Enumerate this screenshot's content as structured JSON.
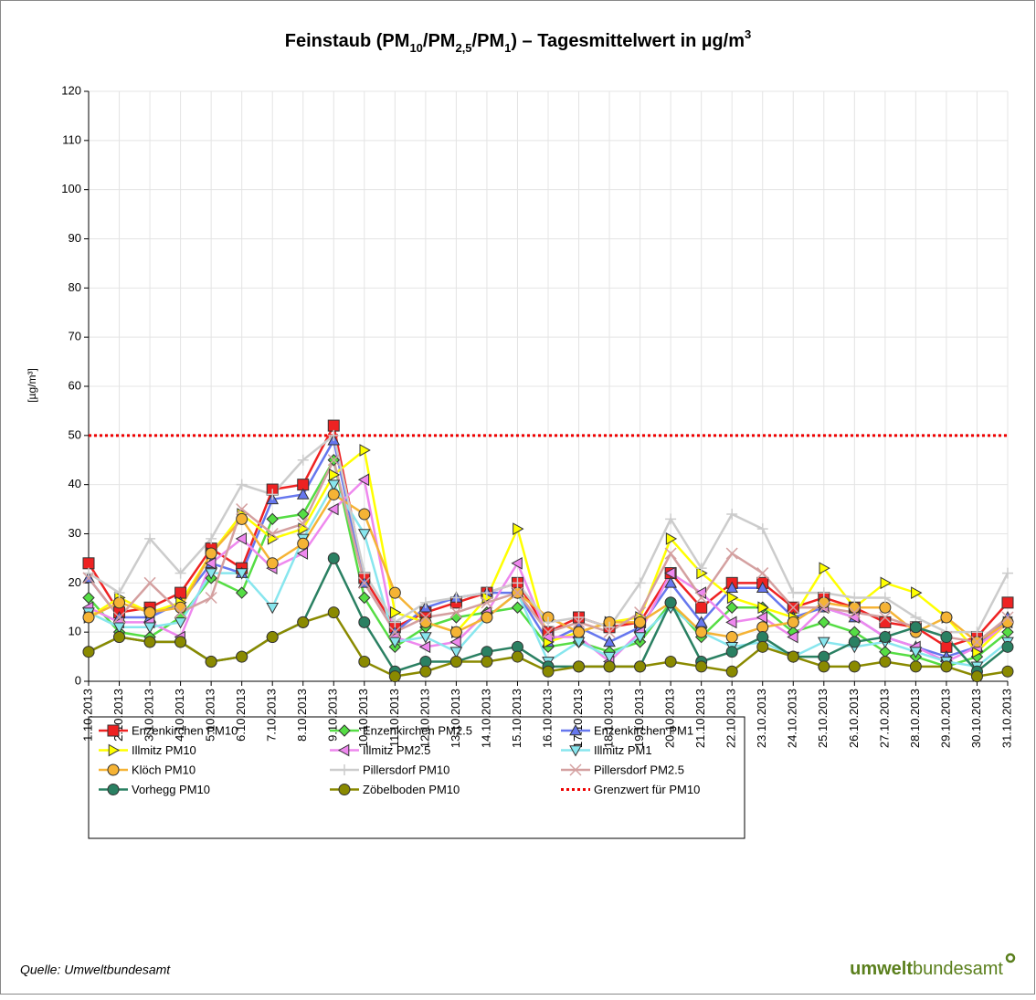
{
  "chart_data": {
    "type": "line",
    "title": [
      "Feinstaub (PM",
      "10",
      "/PM",
      "2,5",
      "/PM",
      "1",
      ") – Tagesmittelwert in µg/m",
      "3"
    ],
    "y_label": "[µg/m³]",
    "categories": [
      "1.10.2013",
      "2.10.2013",
      "3.10.2013",
      "4.10.2013",
      "5.10.2013",
      "6.10.2013",
      "7.10.2013",
      "8.10.2013",
      "9.10.2013",
      "10.10.2013",
      "11.10.2013",
      "12.10.2013",
      "13.10.2013",
      "14.10.2013",
      "15.10.2013",
      "16.10.2013",
      "17.10.2013",
      "18.10.2013",
      "19.10.2013",
      "20.10.2013",
      "21.10.2013",
      "22.10.2013",
      "23.10.2013",
      "24.10.2013",
      "25.10.2013",
      "26.10.2013",
      "27.10.2013",
      "28.10.2013",
      "29.10.2013",
      "30.10.2013",
      "31.10.2013"
    ],
    "ylim": [
      0,
      120
    ],
    "yticks": [
      0,
      10,
      20,
      30,
      40,
      50,
      60,
      70,
      80,
      90,
      100,
      110,
      120
    ],
    "grid": true,
    "series": [
      {
        "name": "Enzenkirchen PM10",
        "color": "#ee2222",
        "marker": "square",
        "values": [
          24,
          14,
          15,
          18,
          27,
          23,
          39,
          40,
          52,
          21,
          11,
          14,
          16,
          18,
          20,
          10,
          13,
          11,
          12,
          22,
          15,
          20,
          20,
          15,
          17,
          15,
          12,
          11,
          7,
          9,
          16
        ]
      },
      {
        "name": "Enzenkirchen PM2.5",
        "color": "#55dd44",
        "marker": "diamond",
        "values": [
          17,
          10,
          9,
          13,
          21,
          18,
          33,
          34,
          45,
          17,
          7,
          11,
          13,
          14,
          15,
          7,
          8,
          6,
          8,
          16,
          9,
          15,
          15,
          10,
          12,
          10,
          6,
          5,
          3,
          5,
          10
        ]
      },
      {
        "name": "Enzenkirchen PM1",
        "color": "#6677ee",
        "marker": "triangle-up",
        "values": [
          21,
          13,
          13,
          16,
          24,
          22,
          37,
          38,
          49,
          20,
          10,
          15,
          17,
          18,
          18,
          8,
          11,
          8,
          11,
          20,
          12,
          19,
          19,
          13,
          15,
          13,
          9,
          7,
          5,
          7,
          13
        ]
      },
      {
        "name": "Illmitz PM10",
        "color": "#ffff00",
        "marker": "triangle-right",
        "values": [
          13,
          17,
          14,
          16,
          26,
          34,
          29,
          31,
          42,
          47,
          14,
          12,
          10,
          17,
          31,
          8,
          10,
          12,
          13,
          29,
          22,
          17,
          15,
          13,
          23,
          15,
          20,
          18,
          13,
          6,
          12
        ]
      },
      {
        "name": "Illmitz PM2.5",
        "color": "#ee88ee",
        "marker": "triangle-left",
        "values": [
          15,
          12,
          12,
          9,
          24,
          29,
          23,
          26,
          35,
          41,
          9,
          7,
          8,
          14,
          24,
          9,
          9,
          4,
          10,
          22,
          18,
          12,
          13,
          9,
          15,
          13,
          9,
          7,
          4,
          7,
          12
        ]
      },
      {
        "name": "Illmitz PM1",
        "color": "#88e6ee",
        "marker": "triangle-down",
        "values": [
          14,
          11,
          11,
          12,
          22,
          22,
          15,
          29,
          40,
          30,
          8,
          9,
          6,
          13,
          18,
          4,
          8,
          5,
          9,
          15,
          10,
          7,
          8,
          5,
          8,
          7,
          8,
          6,
          4,
          3,
          8
        ]
      },
      {
        "name": "Klöch PM10",
        "color": "#f5b335",
        "marker": "circle",
        "values": [
          13,
          16,
          14,
          15,
          26,
          33,
          24,
          28,
          38,
          34,
          18,
          12,
          10,
          13,
          18,
          13,
          10,
          12,
          12,
          16,
          10,
          9,
          11,
          12,
          16,
          15,
          15,
          10,
          13,
          8,
          12
        ]
      },
      {
        "name": "Pillersdorf PM10",
        "color": "#cccccc",
        "marker": "plus",
        "values": [
          22,
          18,
          29,
          22,
          29,
          40,
          38,
          45,
          50,
          22,
          12,
          16,
          17,
          18,
          20,
          12,
          13,
          11,
          20,
          33,
          23,
          34,
          31,
          18,
          18,
          17,
          17,
          13,
          10,
          10,
          22
        ]
      },
      {
        "name": "Pillersdorf PM2.5",
        "color": "#d4a0a0",
        "marker": "cross",
        "values": [
          21,
          13,
          20,
          14,
          17,
          35,
          30,
          32,
          45,
          20,
          10,
          13,
          14,
          16,
          18,
          10,
          12,
          10,
          14,
          26,
          17,
          26,
          22,
          15,
          15,
          14,
          13,
          11,
          9,
          8,
          13
        ]
      },
      {
        "name": "Vorhegg PM10",
        "color": "#2a8062",
        "marker": "circle",
        "values": [
          6,
          9,
          8,
          8,
          4,
          5,
          9,
          12,
          25,
          12,
          2,
          4,
          4,
          6,
          7,
          3,
          3,
          3,
          3,
          16,
          4,
          6,
          9,
          5,
          5,
          8,
          9,
          11,
          9,
          2,
          7
        ]
      },
      {
        "name": "Zöbelboden PM10",
        "color": "#8a8a00",
        "marker": "circle",
        "values": [
          6,
          9,
          8,
          8,
          4,
          5,
          9,
          12,
          14,
          4,
          1,
          2,
          4,
          4,
          5,
          2,
          3,
          3,
          3,
          4,
          3,
          2,
          7,
          5,
          3,
          3,
          4,
          3,
          3,
          1,
          2
        ]
      }
    ],
    "threshold": {
      "name": "Grenzwert für PM10",
      "value": 50,
      "color": "#ee0000"
    },
    "source": "Quelle: Umweltbundesamt",
    "logo": [
      "umwelt",
      "bundesamt"
    ]
  }
}
